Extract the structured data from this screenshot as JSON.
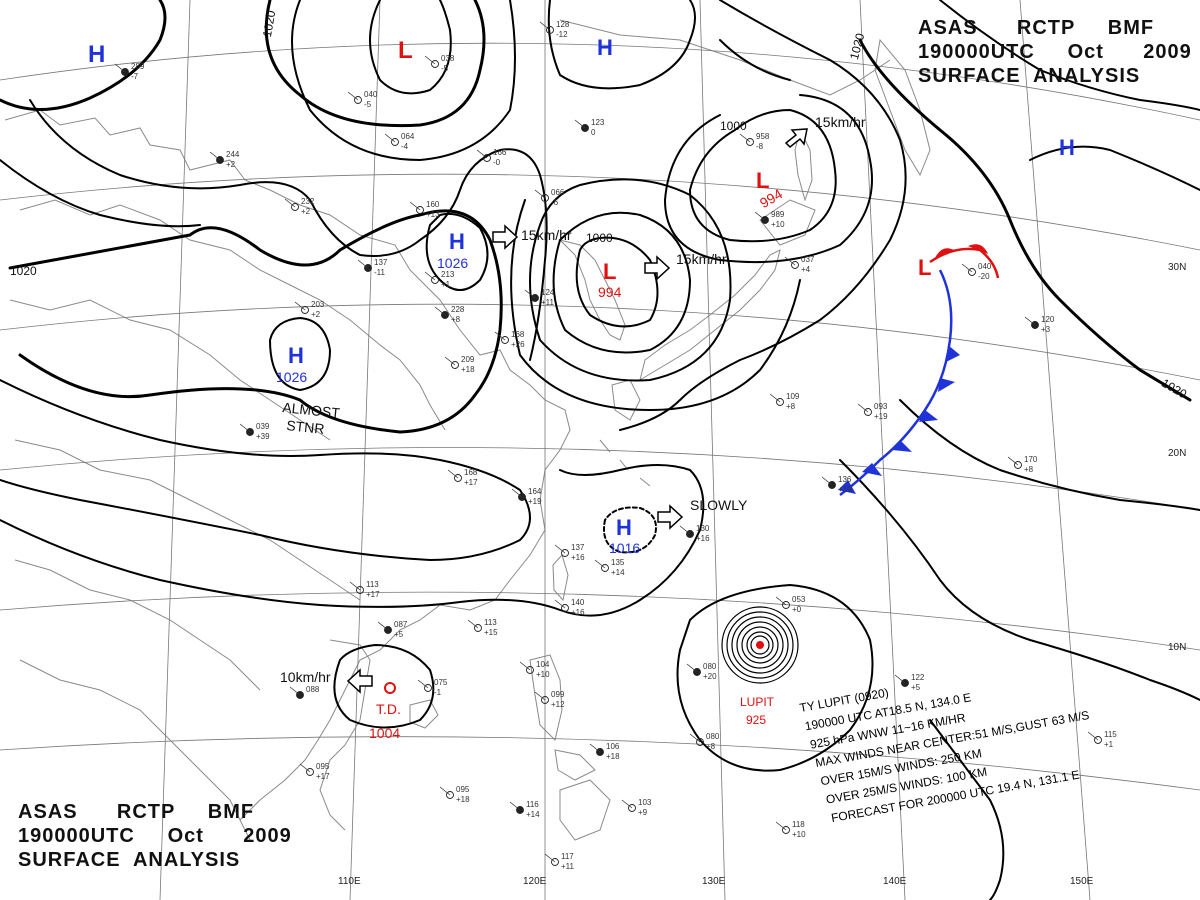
{
  "header_top_right": {
    "line1": "ASAS      RCTP     BMF",
    "line2": "190000UTC     Oct      2009",
    "line3": "SURFACE  ANALYSIS"
  },
  "header_bottom_left": {
    "line1": "ASAS      RCTP     BMF",
    "line2": "190000UTC     Oct      2009",
    "line3": "SURFACE  ANALYSIS"
  },
  "colors": {
    "high": "#1f33d9",
    "low": "#e01010",
    "isobar": "#000000",
    "grid": "#777777",
    "coast": "#8a8a8a",
    "cold_front": "#1f33d9",
    "warm_front": "#e01010"
  },
  "isobar_labels": [
    "1020",
    "1020",
    "1020",
    "1020",
    "1000",
    "1000"
  ],
  "pressure_systems": [
    {
      "type": "H",
      "value": ""
    },
    {
      "type": "L",
      "value": ""
    },
    {
      "type": "H",
      "value": ""
    },
    {
      "type": "H",
      "value": "1026"
    },
    {
      "type": "H",
      "value": "1026"
    },
    {
      "type": "L",
      "value": "994"
    },
    {
      "type": "L",
      "value": "994"
    },
    {
      "type": "L",
      "value": ""
    },
    {
      "type": "H",
      "value": ""
    },
    {
      "type": "H",
      "value": "1016"
    }
  ],
  "movement_labels": {
    "m1": "15km/hr",
    "m2": "15km/hr",
    "m3": "15km/hr",
    "m4": "SLOWLY",
    "m5": "10km/hr"
  },
  "stationary_note": {
    "line1": "ALMOST",
    "line2": "STNR"
  },
  "tropical_depression": {
    "symbol": "T.D.",
    "pressure": "1004"
  },
  "typhoon": {
    "name": "LUPIT",
    "pressure": "925"
  },
  "typhoon_bulletin": [
    "TY  LUPIT  (0920)",
    "190000 UTC  AT18.5 N, 134.0 E",
    "925 hPa  WNW  11~16 KM/HR",
    "MAX WINDS NEAR CENTER:51 M/S,GUST 63 M/S",
    "OVER 15M/S WINDS: 250 KM",
    "OVER 25M/S WINDS: 100 KM",
    "FORECAST FOR 200000 UTC 19.4 N, 131.1 E"
  ],
  "longitude_labels": [
    "110E",
    "120E",
    "130E",
    "140E",
    "150E"
  ],
  "latitude_labels": [
    "30N",
    "20N",
    "10N"
  ],
  "station_plots": [
    {
      "a": "289",
      "b": "-7"
    },
    {
      "a": "038",
      "b": "-5"
    },
    {
      "a": "040",
      "b": "-5"
    },
    {
      "a": "123",
      "b": "0"
    },
    {
      "a": "064",
      "b": "-4"
    },
    {
      "a": "166",
      "b": "-0"
    },
    {
      "a": "244",
      "b": "+2"
    },
    {
      "a": "232",
      "b": "+2"
    },
    {
      "a": "160",
      "b": "+13"
    },
    {
      "a": "137",
      "b": "-11"
    },
    {
      "a": "213",
      "b": "+1"
    },
    {
      "a": "209",
      "b": "+18"
    },
    {
      "a": "228",
      "b": "+8"
    },
    {
      "a": "203",
      "b": "+2"
    },
    {
      "a": "168",
      "b": "+26"
    },
    {
      "a": "124",
      "b": "+11"
    },
    {
      "a": "066",
      "b": "-6"
    },
    {
      "a": "958",
      "b": "-8"
    },
    {
      "a": "989",
      "b": "+10"
    },
    {
      "a": "037",
      "b": "+4"
    },
    {
      "a": "040",
      "b": "-20"
    },
    {
      "a": "120",
      "b": "+3"
    },
    {
      "a": "109",
      "b": "+8"
    },
    {
      "a": "093",
      "b": "+19"
    },
    {
      "a": "136",
      "b": "+19"
    },
    {
      "a": "170",
      "b": "+8"
    },
    {
      "a": "168",
      "b": "+17"
    },
    {
      "a": "164",
      "b": "+19"
    },
    {
      "a": "137",
      "b": "+16"
    },
    {
      "a": "135",
      "b": "+14"
    },
    {
      "a": "130",
      "b": "+16"
    },
    {
      "a": "140",
      "b": "+16"
    },
    {
      "a": "113",
      "b": "+17"
    },
    {
      "a": "087",
      "b": "+5"
    },
    {
      "a": "113",
      "b": "+15"
    },
    {
      "a": "075",
      "b": "-1"
    },
    {
      "a": "088",
      "b": ""
    },
    {
      "a": "104",
      "b": "+10"
    },
    {
      "a": "099",
      "b": "+12"
    },
    {
      "a": "106",
      "b": "+18"
    },
    {
      "a": "095",
      "b": "+17"
    },
    {
      "a": "095",
      "b": "+18"
    },
    {
      "a": "116",
      "b": "+14"
    },
    {
      "a": "117",
      "b": "+11"
    },
    {
      "a": "103",
      "b": "+9"
    },
    {
      "a": "080",
      "b": "+20"
    },
    {
      "a": "080",
      "b": "+8"
    },
    {
      "a": "053",
      "b": "+0"
    },
    {
      "a": "122",
      "b": "+5"
    },
    {
      "a": "115",
      "b": "+1"
    },
    {
      "a": "118",
      "b": "+10"
    },
    {
      "a": "039",
      "b": "+39"
    },
    {
      "a": "128",
      "b": "-12"
    }
  ]
}
